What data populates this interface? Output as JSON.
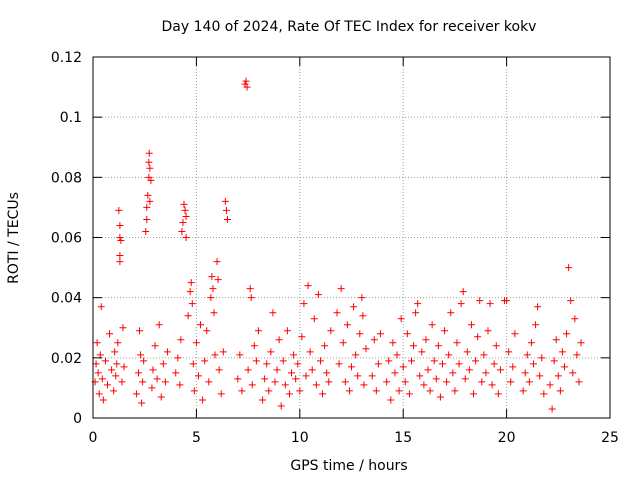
{
  "chart_data": {
    "type": "scatter",
    "title": "Day 140 of 2024, Rate Of TEC Index for receiver kokv",
    "xlabel": "GPS time / hours",
    "ylabel": "ROTI / TECUs",
    "xlim": [
      0,
      25
    ],
    "ylim": [
      0,
      0.12
    ],
    "x_ticks": [
      0,
      5,
      10,
      15,
      20,
      25
    ],
    "x_tick_labels": [
      "0",
      "5",
      "10",
      "15",
      "20",
      "25"
    ],
    "y_ticks": [
      0,
      0.02,
      0.04,
      0.06,
      0.08,
      0.1,
      0.12
    ],
    "y_tick_labels": [
      "0",
      "0.02",
      "0.04",
      "0.06",
      "0.08",
      "0.1",
      "0.12"
    ],
    "grid": true,
    "marker": "+",
    "color": "#ff0000",
    "series": [
      {
        "name": "ROTI",
        "points": [
          [
            0.1,
            0.012
          ],
          [
            0.15,
            0.018
          ],
          [
            0.2,
            0.025
          ],
          [
            0.25,
            0.015
          ],
          [
            0.3,
            0.008
          ],
          [
            0.35,
            0.021
          ],
          [
            0.4,
            0.037
          ],
          [
            0.45,
            0.013
          ],
          [
            0.5,
            0.006
          ],
          [
            0.6,
            0.019
          ],
          [
            0.7,
            0.011
          ],
          [
            0.8,
            0.028
          ],
          [
            0.9,
            0.016
          ],
          [
            1.0,
            0.009
          ],
          [
            1.05,
            0.022
          ],
          [
            1.1,
            0.014
          ],
          [
            1.15,
            0.018
          ],
          [
            1.2,
            0.025
          ],
          [
            1.25,
            0.069
          ],
          [
            1.3,
            0.064
          ],
          [
            1.3,
            0.06
          ],
          [
            1.35,
            0.059
          ],
          [
            1.3,
            0.054
          ],
          [
            1.3,
            0.052
          ],
          [
            1.4,
            0.012
          ],
          [
            1.45,
            0.03
          ],
          [
            1.5,
            0.017
          ],
          [
            2.1,
            0.008
          ],
          [
            2.2,
            0.015
          ],
          [
            2.25,
            0.029
          ],
          [
            2.3,
            0.021
          ],
          [
            2.35,
            0.005
          ],
          [
            2.4,
            0.012
          ],
          [
            2.45,
            0.019
          ],
          [
            2.55,
            0.062
          ],
          [
            2.6,
            0.066
          ],
          [
            2.6,
            0.07
          ],
          [
            2.65,
            0.074
          ],
          [
            2.7,
            0.08
          ],
          [
            2.7,
            0.085
          ],
          [
            2.72,
            0.088
          ],
          [
            2.75,
            0.083
          ],
          [
            2.8,
            0.079
          ],
          [
            2.75,
            0.072
          ],
          [
            2.85,
            0.01
          ],
          [
            2.9,
            0.016
          ],
          [
            3.0,
            0.024
          ],
          [
            3.1,
            0.013
          ],
          [
            3.2,
            0.031
          ],
          [
            3.3,
            0.007
          ],
          [
            3.4,
            0.018
          ],
          [
            3.5,
            0.012
          ],
          [
            3.6,
            0.022
          ],
          [
            4.0,
            0.015
          ],
          [
            4.1,
            0.02
          ],
          [
            4.2,
            0.011
          ],
          [
            4.25,
            0.026
          ],
          [
            4.3,
            0.062
          ],
          [
            4.35,
            0.065
          ],
          [
            4.4,
            0.071
          ],
          [
            4.45,
            0.069
          ],
          [
            4.5,
            0.067
          ],
          [
            4.5,
            0.06
          ],
          [
            4.6,
            0.034
          ],
          [
            4.7,
            0.042
          ],
          [
            4.75,
            0.045
          ],
          [
            4.8,
            0.038
          ],
          [
            4.85,
            0.018
          ],
          [
            4.9,
            0.009
          ],
          [
            5.0,
            0.025
          ],
          [
            5.1,
            0.014
          ],
          [
            5.2,
            0.031
          ],
          [
            5.3,
            0.006
          ],
          [
            5.4,
            0.019
          ],
          [
            5.5,
            0.029
          ],
          [
            5.6,
            0.012
          ],
          [
            5.7,
            0.04
          ],
          [
            5.75,
            0.047
          ],
          [
            5.8,
            0.043
          ],
          [
            5.85,
            0.035
          ],
          [
            5.9,
            0.021
          ],
          [
            6.0,
            0.052
          ],
          [
            6.05,
            0.046
          ],
          [
            6.1,
            0.016
          ],
          [
            6.2,
            0.008
          ],
          [
            6.3,
            0.022
          ],
          [
            6.4,
            0.072
          ],
          [
            6.45,
            0.069
          ],
          [
            6.5,
            0.066
          ],
          [
            7.0,
            0.013
          ],
          [
            7.1,
            0.021
          ],
          [
            7.2,
            0.009
          ],
          [
            7.35,
            0.111
          ],
          [
            7.4,
            0.112
          ],
          [
            7.45,
            0.11
          ],
          [
            7.5,
            0.016
          ],
          [
            7.6,
            0.043
          ],
          [
            7.65,
            0.04
          ],
          [
            7.7,
            0.011
          ],
          [
            7.8,
            0.024
          ],
          [
            7.9,
            0.019
          ],
          [
            8.0,
            0.029
          ],
          [
            8.2,
            0.006
          ],
          [
            8.3,
            0.013
          ],
          [
            8.4,
            0.018
          ],
          [
            8.5,
            0.009
          ],
          [
            8.6,
            0.022
          ],
          [
            8.7,
            0.035
          ],
          [
            8.8,
            0.012
          ],
          [
            8.9,
            0.016
          ],
          [
            9.0,
            0.026
          ],
          [
            9.1,
            0.004
          ],
          [
            9.2,
            0.019
          ],
          [
            9.3,
            0.011
          ],
          [
            9.4,
            0.029
          ],
          [
            9.5,
            0.008
          ],
          [
            9.6,
            0.015
          ],
          [
            9.7,
            0.021
          ],
          [
            9.8,
            0.013
          ],
          [
            9.9,
            0.018
          ],
          [
            10.0,
            0.009
          ],
          [
            10.1,
            0.027
          ],
          [
            10.2,
            0.038
          ],
          [
            10.3,
            0.014
          ],
          [
            10.4,
            0.044
          ],
          [
            10.5,
            0.022
          ],
          [
            10.6,
            0.016
          ],
          [
            10.7,
            0.033
          ],
          [
            10.8,
            0.011
          ],
          [
            10.9,
            0.041
          ],
          [
            11.0,
            0.019
          ],
          [
            11.1,
            0.008
          ],
          [
            11.2,
            0.024
          ],
          [
            11.3,
            0.015
          ],
          [
            11.4,
            0.012
          ],
          [
            11.5,
            0.029
          ],
          [
            11.8,
            0.035
          ],
          [
            11.9,
            0.018
          ],
          [
            12.0,
            0.043
          ],
          [
            12.1,
            0.025
          ],
          [
            12.2,
            0.012
          ],
          [
            12.3,
            0.031
          ],
          [
            12.4,
            0.009
          ],
          [
            12.5,
            0.017
          ],
          [
            12.6,
            0.037
          ],
          [
            12.7,
            0.021
          ],
          [
            12.8,
            0.014
          ],
          [
            12.9,
            0.028
          ],
          [
            13.0,
            0.04
          ],
          [
            13.05,
            0.034
          ],
          [
            13.1,
            0.011
          ],
          [
            13.2,
            0.023
          ],
          [
            13.5,
            0.014
          ],
          [
            13.6,
            0.026
          ],
          [
            13.7,
            0.009
          ],
          [
            13.8,
            0.018
          ],
          [
            13.9,
            0.028
          ],
          [
            14.2,
            0.012
          ],
          [
            14.3,
            0.019
          ],
          [
            14.4,
            0.006
          ],
          [
            14.5,
            0.025
          ],
          [
            14.6,
            0.015
          ],
          [
            14.7,
            0.021
          ],
          [
            14.8,
            0.009
          ],
          [
            14.9,
            0.033
          ],
          [
            15.0,
            0.017
          ],
          [
            15.1,
            0.012
          ],
          [
            15.2,
            0.028
          ],
          [
            15.3,
            0.008
          ],
          [
            15.4,
            0.019
          ],
          [
            15.5,
            0.024
          ],
          [
            15.6,
            0.035
          ],
          [
            15.7,
            0.038
          ],
          [
            15.8,
            0.014
          ],
          [
            15.9,
            0.022
          ],
          [
            16.0,
            0.011
          ],
          [
            16.1,
            0.026
          ],
          [
            16.2,
            0.016
          ],
          [
            16.3,
            0.009
          ],
          [
            16.4,
            0.031
          ],
          [
            16.5,
            0.019
          ],
          [
            16.6,
            0.013
          ],
          [
            16.7,
            0.024
          ],
          [
            16.8,
            0.007
          ],
          [
            16.9,
            0.018
          ],
          [
            17.0,
            0.029
          ],
          [
            17.1,
            0.012
          ],
          [
            17.2,
            0.021
          ],
          [
            17.3,
            0.035
          ],
          [
            17.4,
            0.015
          ],
          [
            17.5,
            0.009
          ],
          [
            17.6,
            0.025
          ],
          [
            17.7,
            0.018
          ],
          [
            17.8,
            0.038
          ],
          [
            17.9,
            0.042
          ],
          [
            18.0,
            0.013
          ],
          [
            18.1,
            0.022
          ],
          [
            18.2,
            0.016
          ],
          [
            18.3,
            0.031
          ],
          [
            18.4,
            0.008
          ],
          [
            18.5,
            0.019
          ],
          [
            18.6,
            0.027
          ],
          [
            18.7,
            0.039
          ],
          [
            18.8,
            0.012
          ],
          [
            18.9,
            0.021
          ],
          [
            19.0,
            0.015
          ],
          [
            19.1,
            0.029
          ],
          [
            19.2,
            0.038
          ],
          [
            19.3,
            0.011
          ],
          [
            19.4,
            0.018
          ],
          [
            19.5,
            0.024
          ],
          [
            19.6,
            0.008
          ],
          [
            19.7,
            0.016
          ],
          [
            19.9,
            0.039
          ],
          [
            20.0,
            0.039
          ],
          [
            20.1,
            0.022
          ],
          [
            20.2,
            0.012
          ],
          [
            20.3,
            0.017
          ],
          [
            20.4,
            0.028
          ],
          [
            20.8,
            0.009
          ],
          [
            20.9,
            0.015
          ],
          [
            21.0,
            0.021
          ],
          [
            21.1,
            0.012
          ],
          [
            21.2,
            0.025
          ],
          [
            21.3,
            0.018
          ],
          [
            21.4,
            0.031
          ],
          [
            21.5,
            0.037
          ],
          [
            21.6,
            0.014
          ],
          [
            21.7,
            0.02
          ],
          [
            21.8,
            0.008
          ],
          [
            22.1,
            0.011
          ],
          [
            22.2,
            0.003
          ],
          [
            22.3,
            0.019
          ],
          [
            22.4,
            0.026
          ],
          [
            22.5,
            0.014
          ],
          [
            22.6,
            0.009
          ],
          [
            22.7,
            0.022
          ],
          [
            22.8,
            0.017
          ],
          [
            22.9,
            0.028
          ],
          [
            23.0,
            0.05
          ],
          [
            23.1,
            0.039
          ],
          [
            23.2,
            0.015
          ],
          [
            23.3,
            0.033
          ],
          [
            23.4,
            0.021
          ],
          [
            23.5,
            0.012
          ],
          [
            23.6,
            0.025
          ]
        ]
      }
    ]
  }
}
